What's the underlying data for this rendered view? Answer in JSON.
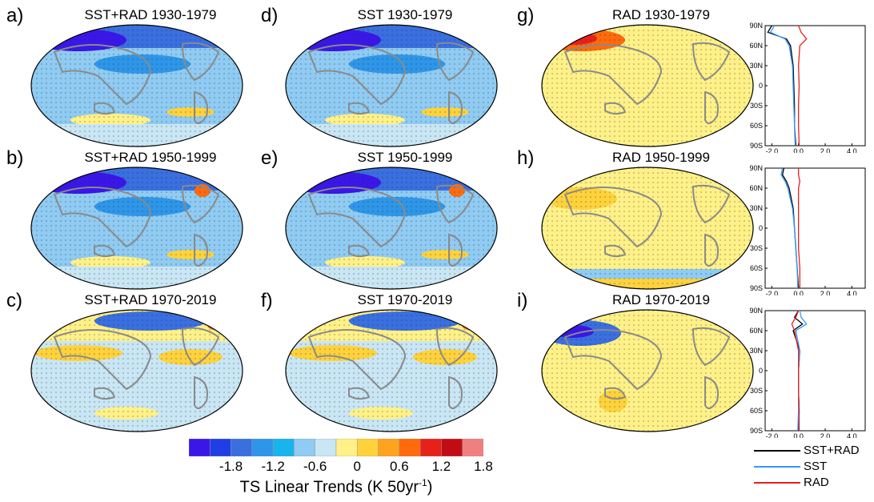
{
  "panels": [
    {
      "letter": "a)",
      "title": "SST+RAD 1930-1979",
      "style": "cold"
    },
    {
      "letter": "d)",
      "title": "SST 1930-1979",
      "style": "cold"
    },
    {
      "letter": "g)",
      "title": "RAD 1930-1979",
      "style": "rad1"
    },
    {
      "letter": "b)",
      "title": "SST+RAD 1950-1999",
      "style": "cold2"
    },
    {
      "letter": "e)",
      "title": "SST 1950-1999",
      "style": "cold2"
    },
    {
      "letter": "h)",
      "title": "RAD 1950-1999",
      "style": "rad2"
    },
    {
      "letter": "c)",
      "title": "SST+RAD 1970-2019",
      "style": "warm"
    },
    {
      "letter": "f)",
      "title": "SST 1970-2019",
      "style": "warm"
    },
    {
      "letter": "i)",
      "title": "RAD 1970-2019",
      "style": "rad3"
    }
  ],
  "colorbar": {
    "colors": [
      "#3a17e8",
      "#1f3ee6",
      "#3a6fe0",
      "#2e96e8",
      "#17b4ee",
      "#8fcbf2",
      "#c9e6f5",
      "#fff187",
      "#ffd23c",
      "#ffa31f",
      "#ff6a0c",
      "#e8201a",
      "#c20c14",
      "#f08080"
    ],
    "tick_labels": [
      "-1.8",
      "-1.2",
      "-0.6",
      "0",
      "0.6",
      "1.2",
      "1.8"
    ],
    "label_main": "TS Linear Trends (K 50yr",
    "label_sup": "-1",
    "label_end": ")"
  },
  "profiles": {
    "y_tick_labels": [
      "90N",
      "60N",
      "30N",
      "0",
      "30S",
      "60S",
      "90S"
    ],
    "x_tick_labels": [
      "-2.0",
      "0.0",
      "2.0",
      "4.0"
    ]
  },
  "legend": [
    {
      "label": "SST+RAD",
      "color": "#000000"
    },
    {
      "label": "SST",
      "color": "#3399ff"
    },
    {
      "label": "RAD",
      "color": "#e8201a"
    }
  ],
  "chart_data": [
    {
      "type": "heatmap",
      "title": "SST+RAD 1930-1979",
      "units": "K 50yr-1",
      "range": [
        -1.8,
        1.8
      ]
    },
    {
      "type": "heatmap",
      "title": "SST 1930-1979",
      "units": "K 50yr-1",
      "range": [
        -1.8,
        1.8
      ]
    },
    {
      "type": "heatmap",
      "title": "RAD 1930-1979",
      "units": "K 50yr-1",
      "range": [
        -1.8,
        1.8
      ]
    },
    {
      "type": "heatmap",
      "title": "SST+RAD 1950-1999",
      "units": "K 50yr-1",
      "range": [
        -1.8,
        1.8
      ]
    },
    {
      "type": "heatmap",
      "title": "SST 1950-1999",
      "units": "K 50yr-1",
      "range": [
        -1.8,
        1.8
      ]
    },
    {
      "type": "heatmap",
      "title": "RAD 1950-1999",
      "units": "K 50yr-1",
      "range": [
        -1.8,
        1.8
      ]
    },
    {
      "type": "heatmap",
      "title": "SST+RAD 1970-2019",
      "units": "K 50yr-1",
      "range": [
        -1.8,
        1.8
      ]
    },
    {
      "type": "heatmap",
      "title": "SST 1970-2019",
      "units": "K 50yr-1",
      "range": [
        -1.8,
        1.8
      ]
    },
    {
      "type": "heatmap",
      "title": "RAD 1970-2019",
      "units": "K 50yr-1",
      "range": [
        -1.8,
        1.8
      ]
    },
    {
      "type": "line",
      "period": "1930-1979",
      "xlim": [
        -2.5,
        5
      ],
      "ylim": [
        -90,
        90
      ],
      "series": [
        {
          "name": "SST+RAD",
          "lat": [
            -90,
            -60,
            -30,
            0,
            30,
            60,
            70,
            80,
            90
          ],
          "x": [
            -0.2,
            -0.3,
            -0.3,
            -0.35,
            -0.4,
            -0.6,
            -0.9,
            -2.3,
            -2.0
          ]
        },
        {
          "name": "SST",
          "lat": [
            -90,
            -60,
            -30,
            0,
            30,
            60,
            70,
            80,
            90
          ],
          "x": [
            -0.25,
            -0.3,
            -0.35,
            -0.4,
            -0.45,
            -0.7,
            -1.0,
            -2.1,
            -1.8
          ]
        },
        {
          "name": "RAD",
          "lat": [
            -90,
            -60,
            -30,
            0,
            30,
            60,
            70,
            80,
            90
          ],
          "x": [
            0.05,
            0.0,
            0.0,
            0.05,
            0.0,
            0.1,
            0.6,
            0.2,
            0.0
          ]
        }
      ]
    },
    {
      "period": "1950-1999",
      "type": "line",
      "xlim": [
        -2.5,
        5
      ],
      "ylim": [
        -90,
        90
      ],
      "series": [
        {
          "name": "SST+RAD",
          "lat": [
            -90,
            -60,
            -30,
            0,
            30,
            60,
            70,
            80,
            90
          ],
          "x": [
            0.0,
            -0.1,
            -0.2,
            -0.3,
            -0.4,
            -0.7,
            -0.9,
            -1.2,
            -1.1
          ]
        },
        {
          "name": "SST",
          "lat": [
            -90,
            -60,
            -30,
            0,
            30,
            60,
            70,
            80,
            90
          ],
          "x": [
            -0.05,
            -0.1,
            -0.2,
            -0.3,
            -0.45,
            -0.8,
            -1.0,
            -1.3,
            -1.2
          ]
        },
        {
          "name": "RAD",
          "lat": [
            -90,
            -60,
            -30,
            0,
            30,
            60,
            70,
            80,
            90
          ],
          "x": [
            0.1,
            0.1,
            0.0,
            0.0,
            0.0,
            0.0,
            0.1,
            0.0,
            0.0
          ]
        }
      ]
    },
    {
      "period": "1970-2019",
      "type": "line",
      "xlim": [
        -2.5,
        5
      ],
      "ylim": [
        -90,
        90
      ],
      "series": [
        {
          "name": "SST+RAD",
          "lat": [
            -90,
            -60,
            -30,
            0,
            30,
            60,
            70,
            80,
            90
          ],
          "x": [
            0.0,
            0.05,
            0.0,
            0.0,
            0.1,
            -0.4,
            0.3,
            -0.3,
            0.0
          ]
        },
        {
          "name": "SST",
          "lat": [
            -90,
            -60,
            -30,
            0,
            30,
            60,
            70,
            80,
            90
          ],
          "x": [
            -0.05,
            0.0,
            0.0,
            0.0,
            0.1,
            -0.2,
            0.6,
            0.2,
            0.1
          ]
        },
        {
          "name": "RAD",
          "lat": [
            -90,
            -60,
            -30,
            0,
            30,
            60,
            70,
            80,
            90
          ],
          "x": [
            0.05,
            0.05,
            0.0,
            0.0,
            0.0,
            -0.3,
            -0.5,
            -0.2,
            0.0
          ]
        }
      ]
    }
  ]
}
